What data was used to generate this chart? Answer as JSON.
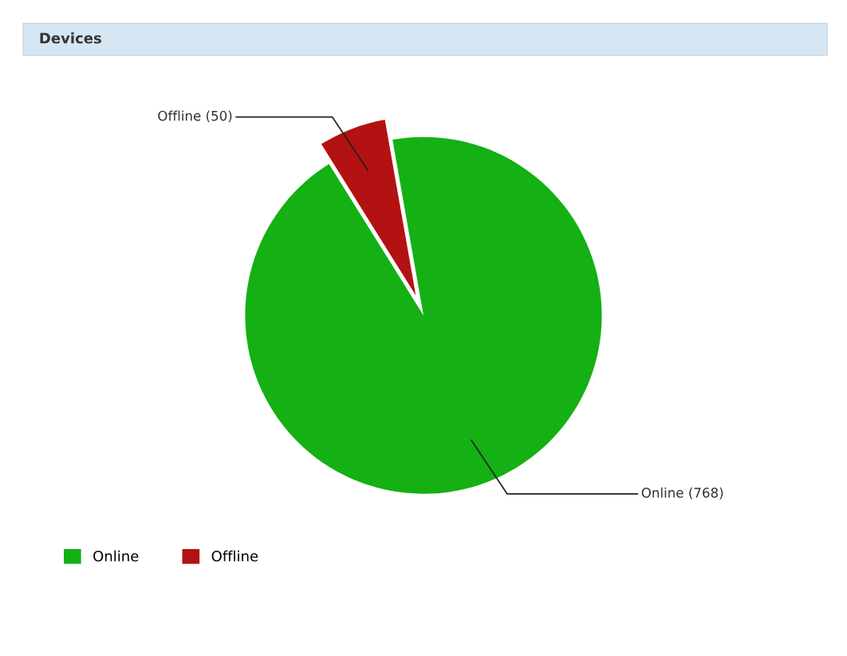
{
  "chart_data": {
    "type": "pie",
    "title": "Devices",
    "categories": [
      "Online",
      "Offline"
    ],
    "values": [
      768,
      50
    ],
    "colors": [
      "#14b014",
      "#b31212"
    ],
    "value_labels": [
      "Online (768)",
      "Offline (50)"
    ],
    "legend": "bottom left"
  }
}
